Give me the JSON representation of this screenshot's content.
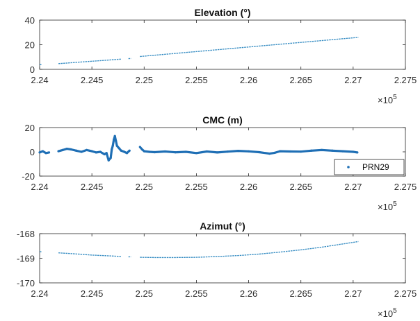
{
  "chart_data": [
    {
      "type": "scatter",
      "title": "Elevation (°)",
      "xlabel": "",
      "ylabel": "",
      "xlim": [
        224000,
        227500
      ],
      "ylim": [
        0,
        40
      ],
      "x_ticks": [
        "2.24",
        "2.245",
        "2.25",
        "2.255",
        "2.26",
        "2.265",
        "2.27",
        "2.275"
      ],
      "y_ticks": [
        "0",
        "20",
        "40"
      ],
      "x_multiplier": "×10",
      "x_multiplier_exp": "5",
      "grid": false,
      "series": [
        {
          "color": "#3a8fc4",
          "segments": [
            {
              "x": [
                224000,
                224020
              ],
              "y": [
                3.8,
                3.9
              ]
            },
            {
              "x": [
                224180,
                224780
              ],
              "y": [
                4.6,
                8.3
              ]
            },
            {
              "x": [
                224850,
                224875
              ],
              "y": [
                8.7,
                8.8
              ]
            },
            {
              "x": [
                224960,
                227050
              ],
              "y": [
                10.4,
                26.0
              ]
            }
          ]
        }
      ]
    },
    {
      "type": "scatter",
      "title": "CMC (m)",
      "xlabel": "",
      "ylabel": "",
      "xlim": [
        224000,
        227500
      ],
      "ylim": [
        -20,
        20
      ],
      "x_ticks": [
        "2.24",
        "2.245",
        "2.25",
        "2.255",
        "2.26",
        "2.265",
        "2.27",
        "2.275"
      ],
      "y_ticks": [
        "-20",
        "0",
        "20"
      ],
      "x_multiplier": "×10",
      "x_multiplier_exp": "5",
      "grid": false,
      "legend": {
        "entries": [
          "PRN29"
        ],
        "location": "bottom-right"
      },
      "series": [
        {
          "name": "PRN29",
          "color": "#1f6fb5",
          "x": [
            224000,
            224030,
            224060,
            224090,
            224180,
            224220,
            224260,
            224300,
            224350,
            224400,
            224450,
            224500,
            224540,
            224580,
            224620,
            224640,
            224660,
            224670,
            224680,
            224690,
            224700,
            224710,
            224720,
            224730,
            224740,
            224760,
            224780,
            224810,
            224835,
            224860,
            224960,
            224980,
            225000,
            225050,
            225100,
            225200,
            225300,
            225400,
            225500,
            225600,
            225700,
            225800,
            225900,
            226000,
            226100,
            226200,
            226250,
            226300,
            226400,
            226500,
            226600,
            226700,
            226800,
            226900,
            227000,
            227040
          ],
          "y": [
            -0.5,
            0.5,
            -1,
            -0.5,
            0.5,
            1.5,
            2.5,
            2,
            1,
            0,
            1.5,
            0.5,
            -0.5,
            0,
            -2,
            -1,
            -7,
            -6,
            -5,
            2,
            5,
            10,
            13,
            9,
            5,
            3,
            1,
            0,
            -1,
            1,
            4,
            2,
            0.5,
            0,
            -0.3,
            0.3,
            -0.4,
            0,
            -1,
            0.3,
            -0.5,
            0.2,
            0.8,
            0.4,
            -0.3,
            -1.5,
            -0.8,
            0.5,
            0.3,
            0.2,
            1,
            1.5,
            1,
            0.5,
            0,
            -0.5
          ]
        }
      ]
    },
    {
      "type": "scatter",
      "title": "Azimut (°)",
      "xlabel": "",
      "ylabel": "",
      "xlim": [
        224000,
        227500
      ],
      "ylim": [
        -170,
        -168
      ],
      "x_ticks": [
        "2.24",
        "2.245",
        "2.25",
        "2.255",
        "2.26",
        "2.265",
        "2.27",
        "2.275"
      ],
      "y_ticks": [
        "-170",
        "-169",
        "-168"
      ],
      "x_multiplier": "×10",
      "x_multiplier_exp": "5",
      "grid": false,
      "series": [
        {
          "color": "#3a8fc4",
          "segments": [
            {
              "x": [
                224000,
                224020
              ],
              "y": [
                -168.73,
                -168.74
              ]
            },
            {
              "x": [
                224180,
                224300,
                224400,
                224500,
                224600,
                224700,
                224780
              ],
              "y": [
                -168.78,
                -168.81,
                -168.84,
                -168.87,
                -168.89,
                -168.91,
                -168.93
              ]
            },
            {
              "x": [
                224850,
                224875
              ],
              "y": [
                -168.94,
                -168.94
              ]
            },
            {
              "x": [
                224960,
                225100,
                225300,
                225500,
                225700,
                225900,
                226100,
                226300,
                226500,
                226700,
                226900,
                227050
              ],
              "y": [
                -168.96,
                -168.97,
                -168.97,
                -168.96,
                -168.93,
                -168.89,
                -168.83,
                -168.75,
                -168.66,
                -168.55,
                -168.42,
                -168.32
              ]
            }
          ]
        }
      ]
    }
  ]
}
